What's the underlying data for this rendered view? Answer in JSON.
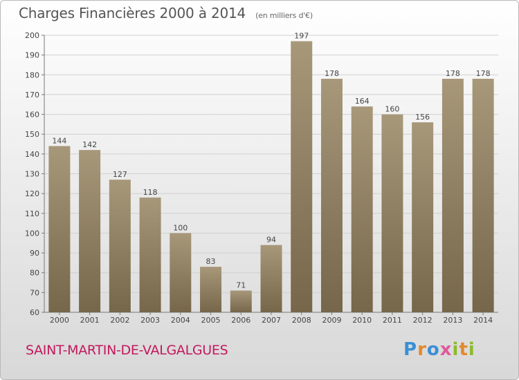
{
  "header": {
    "title": "Charges Financières 2000 à 2014",
    "subtitle": "(en milliers d'€)"
  },
  "footer": {
    "place": "SAINT-MARTIN-DE-VALGALGUES",
    "logo_text": "Proxiti"
  },
  "colors": {
    "bar_top": "#a8987a",
    "bar_bottom": "#76664a",
    "place": "#c2185b"
  },
  "chart_data": {
    "type": "bar",
    "title": "Charges Financières 2000 à 2014",
    "subtitle": "(en milliers d'€)",
    "categories": [
      "2000",
      "2001",
      "2002",
      "2003",
      "2004",
      "2005",
      "2006",
      "2007",
      "2008",
      "2009",
      "2010",
      "2011",
      "2012",
      "2013",
      "2014"
    ],
    "values": [
      144,
      142,
      127,
      118,
      100,
      83,
      71,
      94,
      197,
      178,
      164,
      160,
      156,
      178,
      178
    ],
    "ylim": [
      60,
      200
    ],
    "yticks": [
      60,
      70,
      80,
      90,
      100,
      110,
      120,
      130,
      140,
      150,
      160,
      170,
      180,
      190,
      200
    ],
    "grid": true,
    "legend": "none"
  }
}
